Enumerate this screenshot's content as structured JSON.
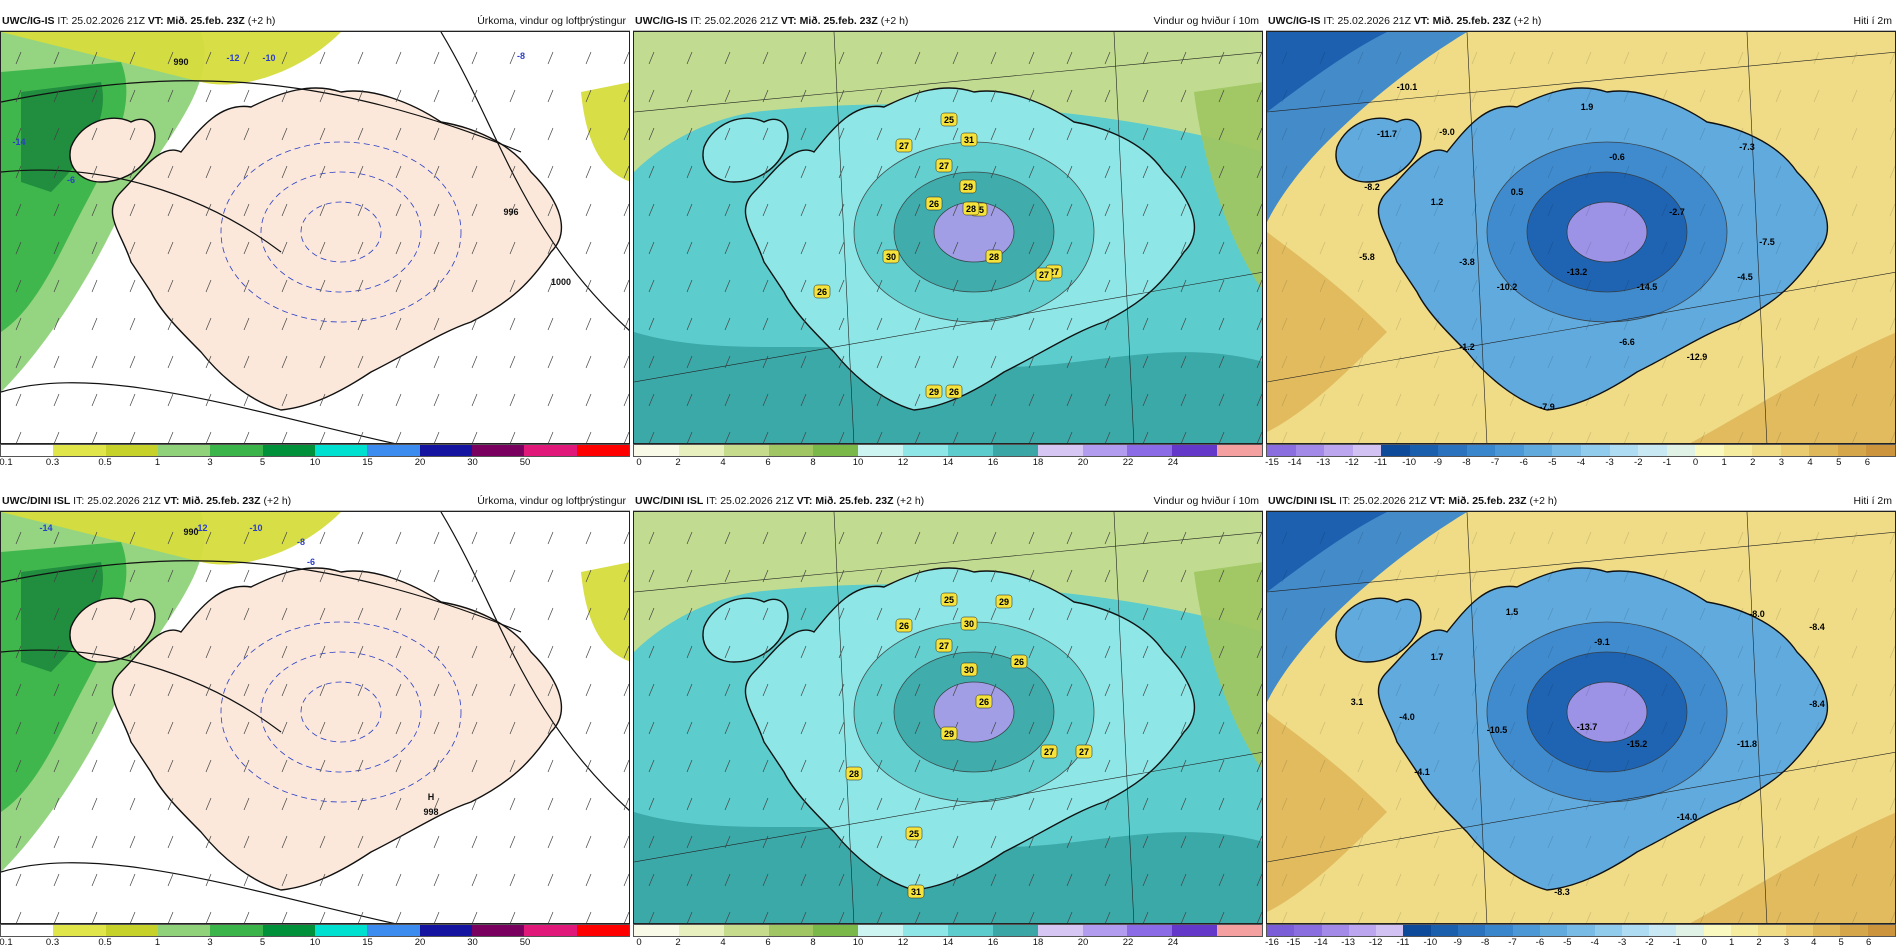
{
  "panels": [
    {
      "model": "UWC/IG-IS",
      "it_label": "IT:",
      "it_value": "25.02.2026 21Z",
      "vt_label": "VT:",
      "vt_value": "Mið. 25.feb. 23Z",
      "lead": "(+2 h)",
      "title": "Úrkoma, vindur og loftþrýstingur",
      "colorbar": [
        "0.1",
        "0.3",
        "0.5",
        "1",
        "3",
        "5",
        "10",
        "15",
        "20",
        "30",
        "50"
      ],
      "colors": [
        "#ffffff",
        "#e0e64a",
        "#c6d22a",
        "#8fd27a",
        "#3bb54a",
        "#00913a",
        "#00e0d0",
        "#3c8cf0",
        "#1414a0",
        "#7a0060",
        "#e0187a",
        "#ff0000"
      ],
      "labels": [
        "-14",
        "-12",
        "-10",
        "-8",
        "-6",
        "990",
        "1000",
        "996"
      ]
    },
    {
      "model": "UWC/IG-IS",
      "it_label": "IT:",
      "it_value": "25.02.2026 21Z",
      "vt_label": "VT:",
      "vt_value": "Mið. 25.feb. 23Z",
      "lead": "(+2 h)",
      "title": "Vindur og hviður í 10m",
      "colorbar": [
        "0",
        "2",
        "4",
        "6",
        "8",
        "10",
        "12",
        "14",
        "16",
        "18",
        "20",
        "22",
        "24"
      ],
      "colors": [
        "#fafae8",
        "#e8f0c0",
        "#c6dc8c",
        "#9fc662",
        "#7ab84a",
        "#cdf4f0",
        "#8ee6e6",
        "#5ccccc",
        "#3aa6a6",
        "#d6c6f4",
        "#b29cf0",
        "#8c6ce6",
        "#6438c8",
        "#f4a0a0"
      ],
      "labels": [
        "25",
        "31",
        "27",
        "27",
        "29",
        "28",
        "26",
        "25",
        "30",
        "28",
        "27",
        "26",
        "26",
        "27",
        "29"
      ]
    },
    {
      "model": "UWC/IG-IS",
      "it_label": "IT:",
      "it_value": "25.02.2026 21Z",
      "vt_label": "VT:",
      "vt_value": "Mið. 25.feb. 23Z",
      "lead": "(+2 h)",
      "title": "Hiti í 2m",
      "colorbar": [
        "-15",
        "-14",
        "-13",
        "-12",
        "-11",
        "-10",
        "-9",
        "-8",
        "-7",
        "-6",
        "-5",
        "-4",
        "-3",
        "-2",
        "-1",
        "0",
        "1",
        "2",
        "3",
        "4",
        "5",
        "6"
      ],
      "colors": [
        "#8a6ee0",
        "#a48ae8",
        "#bca6f0",
        "#d2c2f4",
        "#0e4a9a",
        "#1a5eae",
        "#2a72be",
        "#3a86cc",
        "#4c98d6",
        "#60aade",
        "#78bce6",
        "#92cced",
        "#aedcf2",
        "#c8e8f4",
        "#e0f2e6",
        "#fafac0",
        "#f6eca0",
        "#f0dc86",
        "#eacb70",
        "#e0b85c",
        "#d6a64a",
        "#cc943c"
      ],
      "labels": [
        "-10.1",
        "1.9",
        "-11.7",
        "-9.0",
        "-0.6",
        "-7.3",
        "-8.2",
        "1.2",
        "0.5",
        "-2.7",
        "-5.8",
        "-3.8",
        "-7.5",
        "-10.2",
        "-13.2",
        "-14.5",
        "-4.5",
        "-1.2",
        "-6.6",
        "-12.9",
        "-7.9"
      ]
    },
    {
      "model": "UWC/DINI ISL",
      "it_label": "IT:",
      "it_value": "25.02.2026 21Z",
      "vt_label": "VT:",
      "vt_value": "Mið. 25.feb. 23Z",
      "lead": "(+2 h)",
      "title": "Úrkoma, vindur og loftþrýstingur",
      "colorbar": [
        "0.1",
        "0.3",
        "0.5",
        "1",
        "3",
        "5",
        "10",
        "15",
        "20",
        "30",
        "50"
      ],
      "colors": [
        "#ffffff",
        "#e0e64a",
        "#c6d22a",
        "#8fd27a",
        "#3bb54a",
        "#00913a",
        "#00e0d0",
        "#3c8cf0",
        "#1414a0",
        "#7a0060",
        "#e0187a",
        "#ff0000"
      ],
      "labels": [
        "-14",
        "-12",
        "-10",
        "-8",
        "-6",
        "990",
        "998",
        "H"
      ]
    },
    {
      "model": "UWC/DINI ISL",
      "it_label": "IT:",
      "it_value": "25.02.2026 21Z",
      "vt_label": "VT:",
      "vt_value": "Mið. 25.feb. 23Z",
      "lead": "(+2 h)",
      "title": "Vindur og hviður í 10m",
      "colorbar": [
        "0",
        "2",
        "4",
        "6",
        "8",
        "10",
        "12",
        "14",
        "16",
        "18",
        "20",
        "22",
        "24"
      ],
      "colors": [
        "#fafae8",
        "#e8f0c0",
        "#c6dc8c",
        "#9fc662",
        "#7ab84a",
        "#cdf4f0",
        "#8ee6e6",
        "#5ccccc",
        "#3aa6a6",
        "#d6c6f4",
        "#b29cf0",
        "#8c6ce6",
        "#6438c8",
        "#f4a0a0"
      ],
      "labels": [
        "25",
        "29",
        "26",
        "30",
        "27",
        "30",
        "26",
        "26",
        "29",
        "28",
        "27",
        "27",
        "25",
        "31"
      ]
    },
    {
      "model": "UWC/DINI ISL",
      "it_label": "IT:",
      "it_value": "25.02.2026 21Z",
      "vt_label": "VT:",
      "vt_value": "Mið. 25.feb. 23Z",
      "lead": "(+2 h)",
      "title": "Hiti í 2m",
      "colorbar": [
        "-16",
        "-15",
        "-14",
        "-13",
        "-12",
        "-11",
        "-10",
        "-9",
        "-8",
        "-7",
        "-6",
        "-5",
        "-4",
        "-3",
        "-2",
        "-1",
        "0",
        "1",
        "2",
        "3",
        "4",
        "5",
        "6"
      ],
      "colors": [
        "#7a5ed8",
        "#8a6ee0",
        "#a48ae8",
        "#bca6f0",
        "#d2c2f4",
        "#0e4a9a",
        "#1a5eae",
        "#2a72be",
        "#3a86cc",
        "#4c98d6",
        "#60aade",
        "#78bce6",
        "#92cced",
        "#aedcf2",
        "#c8e8f4",
        "#e0f2e6",
        "#fafac0",
        "#f6eca0",
        "#f0dc86",
        "#eacb70",
        "#e0b85c",
        "#d6a64a",
        "#cc943c"
      ],
      "labels": [
        "1.5",
        "-8.0",
        "-9.1",
        "-8.4",
        "1.7",
        "3.1",
        "-4.0",
        "-10.5",
        "-13.7",
        "-15.2",
        "-11.8",
        "-8.4",
        "-4.1",
        "-14.0",
        "-8.3"
      ]
    }
  ]
}
